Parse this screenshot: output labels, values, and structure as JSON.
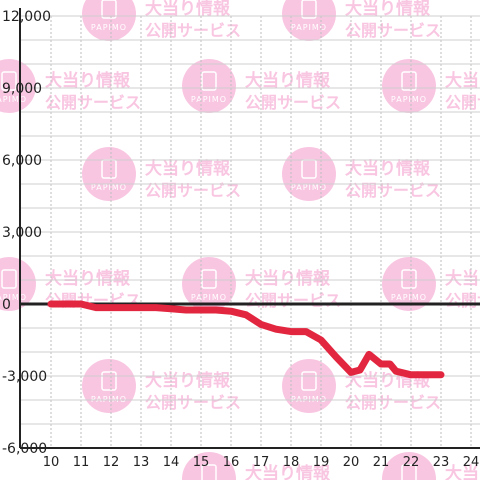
{
  "watermark": {
    "title": "大当り情報",
    "subtitle": "公開サービス",
    "badge": "PAPIMO",
    "color": "#f9c6e2"
  },
  "chart_data": {
    "type": "line",
    "x": [
      10,
      11,
      11.5,
      12,
      12.5,
      13,
      13.5,
      14,
      14.5,
      15,
      15.5,
      16,
      16.5,
      17,
      17.5,
      18,
      18.5,
      19,
      19.5,
      20,
      20.3,
      20.6,
      20.8,
      21,
      21.3,
      21.5,
      22,
      22.5,
      23
    ],
    "series": [
      {
        "color": "#e3263f",
        "values": [
          0,
          0,
          -150,
          -150,
          -150,
          -150,
          -150,
          -200,
          -250,
          -250,
          -250,
          -300,
          -450,
          -850,
          -1050,
          -1150,
          -1150,
          -1500,
          -2200,
          -2850,
          -2750,
          -2100,
          -2300,
          -2500,
          -2500,
          -2800,
          -2950,
          -2950,
          -2950
        ]
      }
    ],
    "xlim": [
      9.5,
      24.5
    ],
    "ylim": [
      -6000,
      12000
    ],
    "x_ticks": [
      "10",
      "11",
      "12",
      "13",
      "14",
      "15",
      "16",
      "17",
      "18",
      "19",
      "20",
      "21",
      "22",
      "23",
      "24"
    ],
    "y_ticks": [
      "12,000",
      "9,000",
      "6,000",
      "3,000",
      "0",
      "-3,000",
      "-6,000"
    ],
    "y_tick_values": [
      12000,
      9000,
      6000,
      3000,
      0,
      -3000,
      -6000
    ],
    "grid": true
  }
}
